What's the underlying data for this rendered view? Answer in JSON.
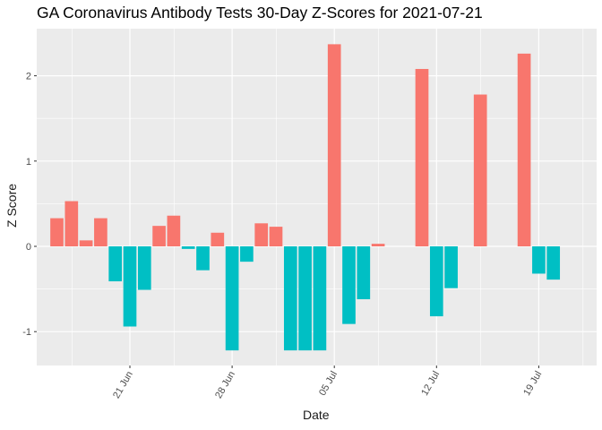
{
  "chart_data": {
    "type": "bar",
    "title": "GA Coronavirus Antibody Tests 30-Day Z-Scores for 2021-07-21",
    "xlabel": "Date",
    "ylabel": "Z Score",
    "x_tick_labels": [
      "21 Jun",
      "28 Jun",
      "05 Jul",
      "12 Jul",
      "19 Jul"
    ],
    "y_ticks": [
      -1,
      0,
      1,
      2
    ],
    "ylim": [
      -1.4,
      2.55
    ],
    "grid": true,
    "legend": "none",
    "colors": {
      "positive": "#F8766D",
      "negative": "#00BFC4",
      "panel": "#EBEBEB",
      "grid": "#FFFFFF"
    },
    "points": [
      {
        "date": "2021-06-16",
        "value": 0.33
      },
      {
        "date": "2021-06-17",
        "value": 0.53
      },
      {
        "date": "2021-06-18",
        "value": 0.07
      },
      {
        "date": "2021-06-19",
        "value": 0.33
      },
      {
        "date": "2021-06-20",
        "value": -0.41
      },
      {
        "date": "2021-06-21",
        "value": -0.94
      },
      {
        "date": "2021-06-22",
        "value": -0.51
      },
      {
        "date": "2021-06-23",
        "value": 0.24
      },
      {
        "date": "2021-06-24",
        "value": 0.36
      },
      {
        "date": "2021-06-25",
        "value": -0.03
      },
      {
        "date": "2021-06-26",
        "value": -0.28
      },
      {
        "date": "2021-06-27",
        "value": 0.16
      },
      {
        "date": "2021-06-28",
        "value": -1.22
      },
      {
        "date": "2021-06-29",
        "value": -0.18
      },
      {
        "date": "2021-06-30",
        "value": 0.27
      },
      {
        "date": "2021-07-01",
        "value": 0.23
      },
      {
        "date": "2021-07-02",
        "value": -1.22
      },
      {
        "date": "2021-07-03",
        "value": -1.22
      },
      {
        "date": "2021-07-04",
        "value": -1.22
      },
      {
        "date": "2021-07-05",
        "value": 2.37
      },
      {
        "date": "2021-07-06",
        "value": -0.91
      },
      {
        "date": "2021-07-07",
        "value": -0.62
      },
      {
        "date": "2021-07-08",
        "value": 0.03
      },
      {
        "date": "2021-07-09",
        "value": 0.0
      },
      {
        "date": "2021-07-10",
        "value": 0.0
      },
      {
        "date": "2021-07-11",
        "value": 2.08
      },
      {
        "date": "2021-07-12",
        "value": -0.82
      },
      {
        "date": "2021-07-13",
        "value": -0.49
      },
      {
        "date": "2021-07-14",
        "value": 0.0
      },
      {
        "date": "2021-07-15",
        "value": 1.78
      },
      {
        "date": "2021-07-16",
        "value": 0.0
      },
      {
        "date": "2021-07-17",
        "value": 0.0
      },
      {
        "date": "2021-07-18",
        "value": 2.26
      },
      {
        "date": "2021-07-19",
        "value": -0.32
      },
      {
        "date": "2021-07-20",
        "value": -0.39
      }
    ]
  }
}
